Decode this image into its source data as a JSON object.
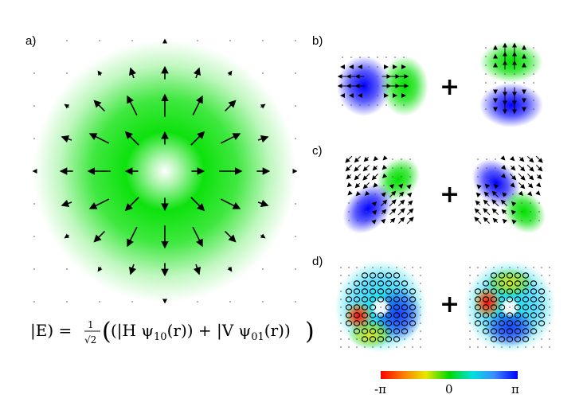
{
  "panels": {
    "a": {
      "label": "a)"
    },
    "b": {
      "label": "b)",
      "operator": "+"
    },
    "c": {
      "label": "c)",
      "operator": "+"
    },
    "d": {
      "label": "d)",
      "operator": "+"
    }
  },
  "equation": {
    "lhs": "|E) =",
    "frac_num": "1",
    "frac_den": "√2",
    "term1_prefix": "(|H ψ",
    "term1_sub": "10",
    "term1_arg": "(r)) + |V ψ",
    "term2_sub": "01",
    "term2_arg": "(r))",
    "big_open": "(",
    "big_close": ")"
  },
  "colorbar": {
    "min_label": "-π",
    "mid_label": "0",
    "max_label": "π",
    "stops": [
      "#ff0000",
      "#ff7f00",
      "#e8e800",
      "#00d800",
      "#00e0e0",
      "#3c8cff",
      "#0000ff"
    ]
  },
  "colors": {
    "green": "#00e000",
    "blue": "#0000ff",
    "arrow": "#000000"
  }
}
